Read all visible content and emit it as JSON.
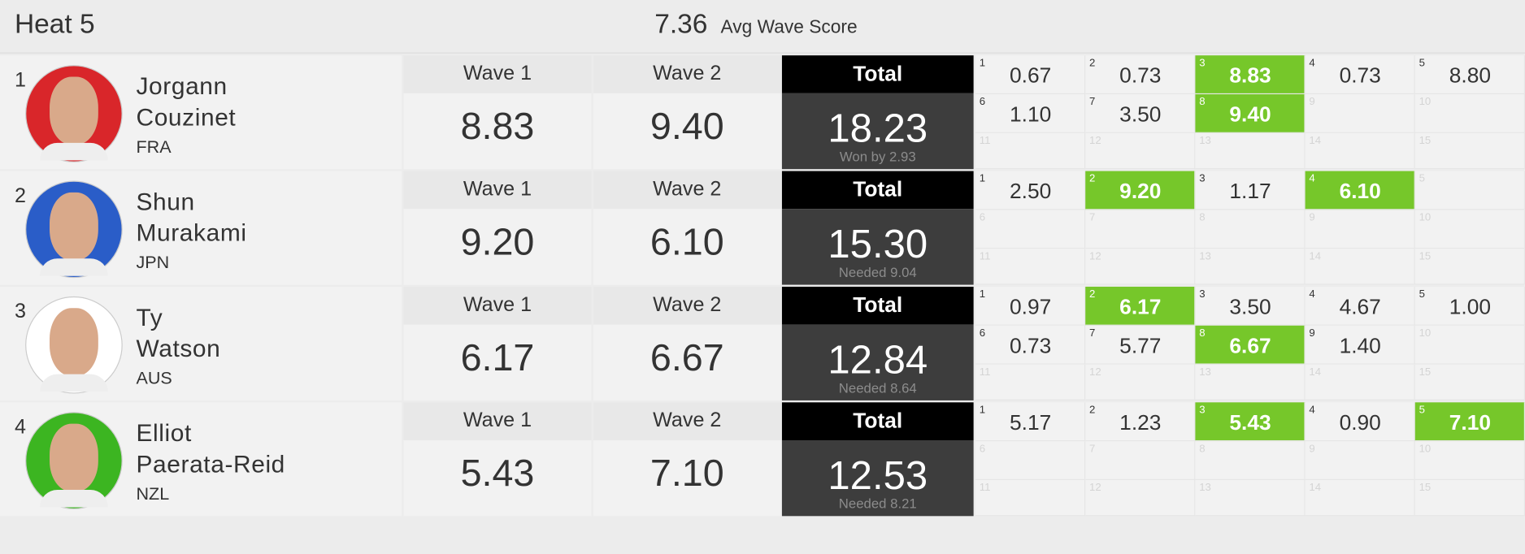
{
  "header": {
    "title": "Heat 5",
    "avg_score": "7.36",
    "avg_label": "Avg Wave Score"
  },
  "columns": [
    "Wave 1",
    "Wave 2",
    "Total"
  ],
  "wave_slots": [
    1,
    2,
    3,
    4,
    5,
    6,
    7,
    8,
    9,
    10,
    11,
    12,
    13,
    14,
    15
  ],
  "athletes": [
    {
      "rank": 1,
      "first_name": "Jorgann",
      "last_name": "Couzinet",
      "country": "FRA",
      "avatar_color": "#d9262a",
      "wave_1": "8.83",
      "wave_2": "9.40",
      "total": "18.23",
      "note": "Won by 2.93",
      "waves": [
        "0.67",
        "0.73",
        "8.83",
        "0.73",
        "8.80",
        "1.10",
        "3.50",
        "9.40"
      ],
      "best_waves": [
        3,
        8
      ]
    },
    {
      "rank": 2,
      "first_name": "Shun",
      "last_name": "Murakami",
      "country": "JPN",
      "avatar_color": "#2a5dc8",
      "wave_1": "9.20",
      "wave_2": "6.10",
      "total": "15.30",
      "note": "Needed 9.04",
      "waves": [
        "2.50",
        "9.20",
        "1.17",
        "6.10"
      ],
      "best_waves": [
        2,
        4
      ]
    },
    {
      "rank": 3,
      "first_name": "Ty",
      "last_name": "Watson",
      "country": "AUS",
      "avatar_color": "#ffffff",
      "wave_1": "6.17",
      "wave_2": "6.67",
      "total": "12.84",
      "note": "Needed 8.64",
      "waves": [
        "0.97",
        "6.17",
        "3.50",
        "4.67",
        "1.00",
        "0.73",
        "5.77",
        "6.67",
        "1.40"
      ],
      "best_waves": [
        2,
        8
      ]
    },
    {
      "rank": 4,
      "first_name": "Elliot",
      "last_name": "Paerata-Reid",
      "country": "NZL",
      "avatar_color": "#3cb521",
      "wave_1": "5.43",
      "wave_2": "7.10",
      "total": "12.53",
      "note": "Needed 8.21",
      "waves": [
        "5.17",
        "1.23",
        "5.43",
        "0.90",
        "7.10"
      ],
      "best_waves": [
        3,
        5
      ]
    }
  ]
}
